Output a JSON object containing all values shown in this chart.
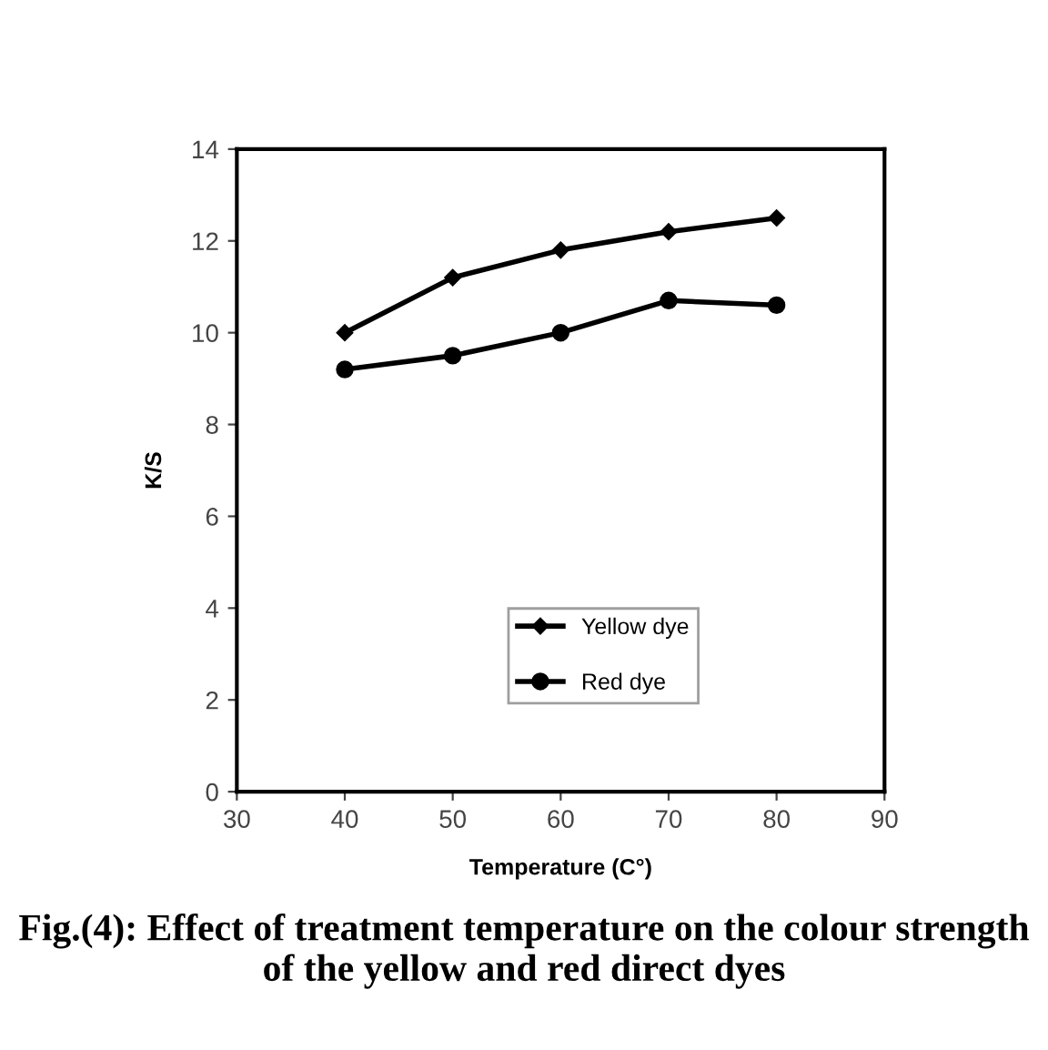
{
  "chart_data": {
    "type": "line",
    "xlabel": "Temperature (C°)",
    "ylabel": "K/S",
    "annotations": [
      "Fig.(4): Effect of treatment temperature on the colour strength of the yellow and red direct dyes"
    ],
    "x": [
      40,
      50,
      60,
      70,
      80
    ],
    "series": [
      {
        "name": "Yellow dye",
        "color": "#000000",
        "marker": "diamond",
        "values": [
          10,
          11.2,
          11.8,
          12.2,
          12.5
        ]
      },
      {
        "name": "Red dye",
        "color": "#000000",
        "marker": "circle",
        "values": [
          9.2,
          9.5,
          10,
          10.7,
          10.6
        ]
      }
    ],
    "xlim": [
      30,
      90
    ],
    "xticks": [
      30,
      40,
      50,
      60,
      70,
      80,
      90
    ],
    "ylim": [
      0,
      14
    ],
    "yticks": [
      0,
      2,
      4,
      6,
      8,
      10,
      12,
      14
    ],
    "grid": false,
    "legend": "bottom right",
    "line_style": "solid"
  }
}
